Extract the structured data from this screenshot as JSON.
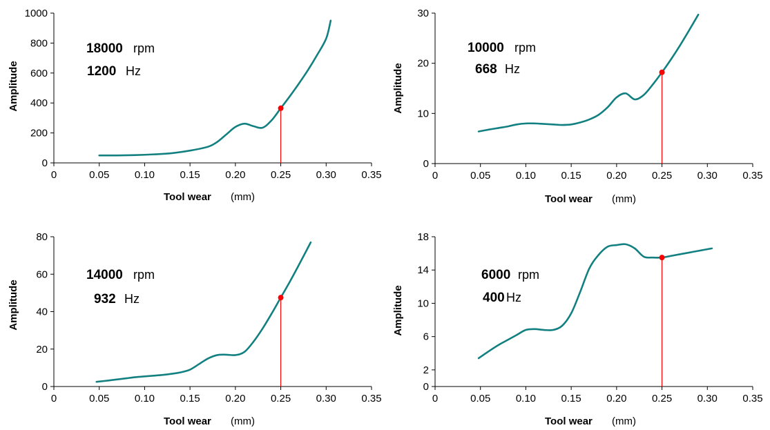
{
  "colors": {
    "curve": "#128080",
    "marker": "#ff0000",
    "axis": "#000000"
  },
  "chart_data": [
    {
      "type": "line",
      "xlabel": "Tool wear",
      "xunit": "(mm)",
      "ylabel": "Amplitude",
      "xlim": [
        0,
        0.35
      ],
      "ylim": [
        0,
        1000
      ],
      "xticks": [
        "0",
        "0.05",
        "0.10",
        "0.15",
        "0.20",
        "0.25",
        "0.30",
        "0.35"
      ],
      "yticks": [
        "0",
        "200",
        "400",
        "600",
        "800",
        "1000"
      ],
      "annotation": {
        "speed": "18000",
        "speed_unit": "rpm",
        "freq": "1200",
        "freq_unit": "Hz"
      },
      "series": [
        {
          "x": [
            0.05,
            0.07,
            0.09,
            0.11,
            0.13,
            0.15,
            0.17,
            0.18,
            0.19,
            0.2,
            0.21,
            0.22,
            0.23,
            0.24,
            0.25,
            0.26,
            0.27,
            0.28,
            0.29,
            0.3,
            0.305
          ],
          "y": [
            50,
            50,
            52,
            57,
            65,
            82,
            108,
            140,
            190,
            240,
            262,
            245,
            235,
            285,
            365,
            445,
            530,
            620,
            720,
            830,
            950
          ]
        }
      ],
      "marker": {
        "x": 0.25,
        "y": 365
      }
    },
    {
      "type": "line",
      "xlabel": "Tool wear",
      "xunit": "(mm)",
      "ylabel": "Amplitude",
      "xlim": [
        0,
        0.35
      ],
      "ylim": [
        0,
        30
      ],
      "xticks": [
        "0",
        "0.05",
        "0.10",
        "0.15",
        "0.20",
        "0.25",
        "0.30",
        "0.35"
      ],
      "yticks": [
        "0",
        "10",
        "20",
        "30"
      ],
      "annotation": {
        "speed": "10000",
        "speed_unit": "rpm",
        "freq": "668",
        "freq_unit": "Hz"
      },
      "series": [
        {
          "x": [
            0.048,
            0.06,
            0.07,
            0.08,
            0.09,
            0.1,
            0.11,
            0.12,
            0.13,
            0.14,
            0.15,
            0.16,
            0.17,
            0.18,
            0.19,
            0.2,
            0.21,
            0.22,
            0.23,
            0.24,
            0.25,
            0.26,
            0.27,
            0.28,
            0.29
          ],
          "y": [
            6.4,
            6.8,
            7.1,
            7.4,
            7.8,
            8.0,
            8.0,
            7.9,
            7.8,
            7.7,
            7.8,
            8.2,
            8.8,
            9.7,
            11.2,
            13.2,
            14.0,
            12.8,
            13.7,
            15.8,
            18.2,
            20.8,
            23.6,
            26.6,
            29.7
          ]
        }
      ],
      "marker": {
        "x": 0.25,
        "y": 18.2
      }
    },
    {
      "type": "line",
      "xlabel": "Tool wear",
      "xunit": "(mm)",
      "ylabel": "Amplitude",
      "xlim": [
        0,
        0.35
      ],
      "ylim": [
        0,
        80
      ],
      "xticks": [
        "0",
        "0.05",
        "0.10",
        "0.15",
        "0.20",
        "0.25",
        "0.30",
        "0.35"
      ],
      "yticks": [
        "0",
        "20",
        "40",
        "60",
        "80"
      ],
      "annotation": {
        "speed": "14000",
        "speed_unit": "rpm",
        "freq": "932",
        "freq_unit": "Hz"
      },
      "series": [
        {
          "x": [
            0.047,
            0.06,
            0.07,
            0.08,
            0.09,
            0.1,
            0.11,
            0.12,
            0.13,
            0.14,
            0.15,
            0.16,
            0.17,
            0.18,
            0.19,
            0.2,
            0.21,
            0.22,
            0.23,
            0.24,
            0.25,
            0.26,
            0.27,
            0.283
          ],
          "y": [
            2.5,
            3.2,
            3.8,
            4.4,
            5.0,
            5.4,
            5.8,
            6.2,
            6.8,
            7.6,
            9.0,
            12,
            15,
            16.8,
            17.0,
            16.8,
            18.5,
            24,
            31,
            39,
            47.5,
            56,
            65,
            77
          ]
        }
      ],
      "marker": {
        "x": 0.25,
        "y": 47.5
      }
    },
    {
      "type": "line",
      "xlabel": "Tool wear",
      "xunit": "(mm)",
      "ylabel": "Amplitude",
      "xlim": [
        0,
        0.35
      ],
      "ylim": [
        0,
        18
      ],
      "xticks": [
        "0",
        "0.05",
        "0.10",
        "0.15",
        "0.20",
        "0.25",
        "0.30",
        "0.35"
      ],
      "yticks": [
        "0",
        "2",
        "6",
        "10",
        "14",
        "18"
      ],
      "ytick_values": [
        0,
        2,
        6,
        10,
        14,
        18
      ],
      "annotation": {
        "speed": "6000",
        "speed_unit": "rpm",
        "freq": "400",
        "freq_unit": "Hz"
      },
      "series": [
        {
          "x": [
            0.048,
            0.06,
            0.07,
            0.08,
            0.09,
            0.1,
            0.11,
            0.12,
            0.13,
            0.14,
            0.15,
            0.16,
            0.17,
            0.18,
            0.19,
            0.2,
            0.21,
            0.22,
            0.23,
            0.24,
            0.25,
            0.26,
            0.27,
            0.28,
            0.29,
            0.305
          ],
          "y": [
            3.4,
            4.3,
            5.0,
            5.6,
            6.2,
            6.8,
            6.9,
            6.8,
            6.8,
            7.3,
            8.8,
            11.4,
            14.2,
            15.8,
            16.8,
            17.0,
            17.1,
            16.6,
            15.6,
            15.5,
            15.5,
            15.7,
            15.9,
            16.1,
            16.3,
            16.6
          ]
        }
      ],
      "marker": {
        "x": 0.25,
        "y": 15.5
      }
    }
  ]
}
